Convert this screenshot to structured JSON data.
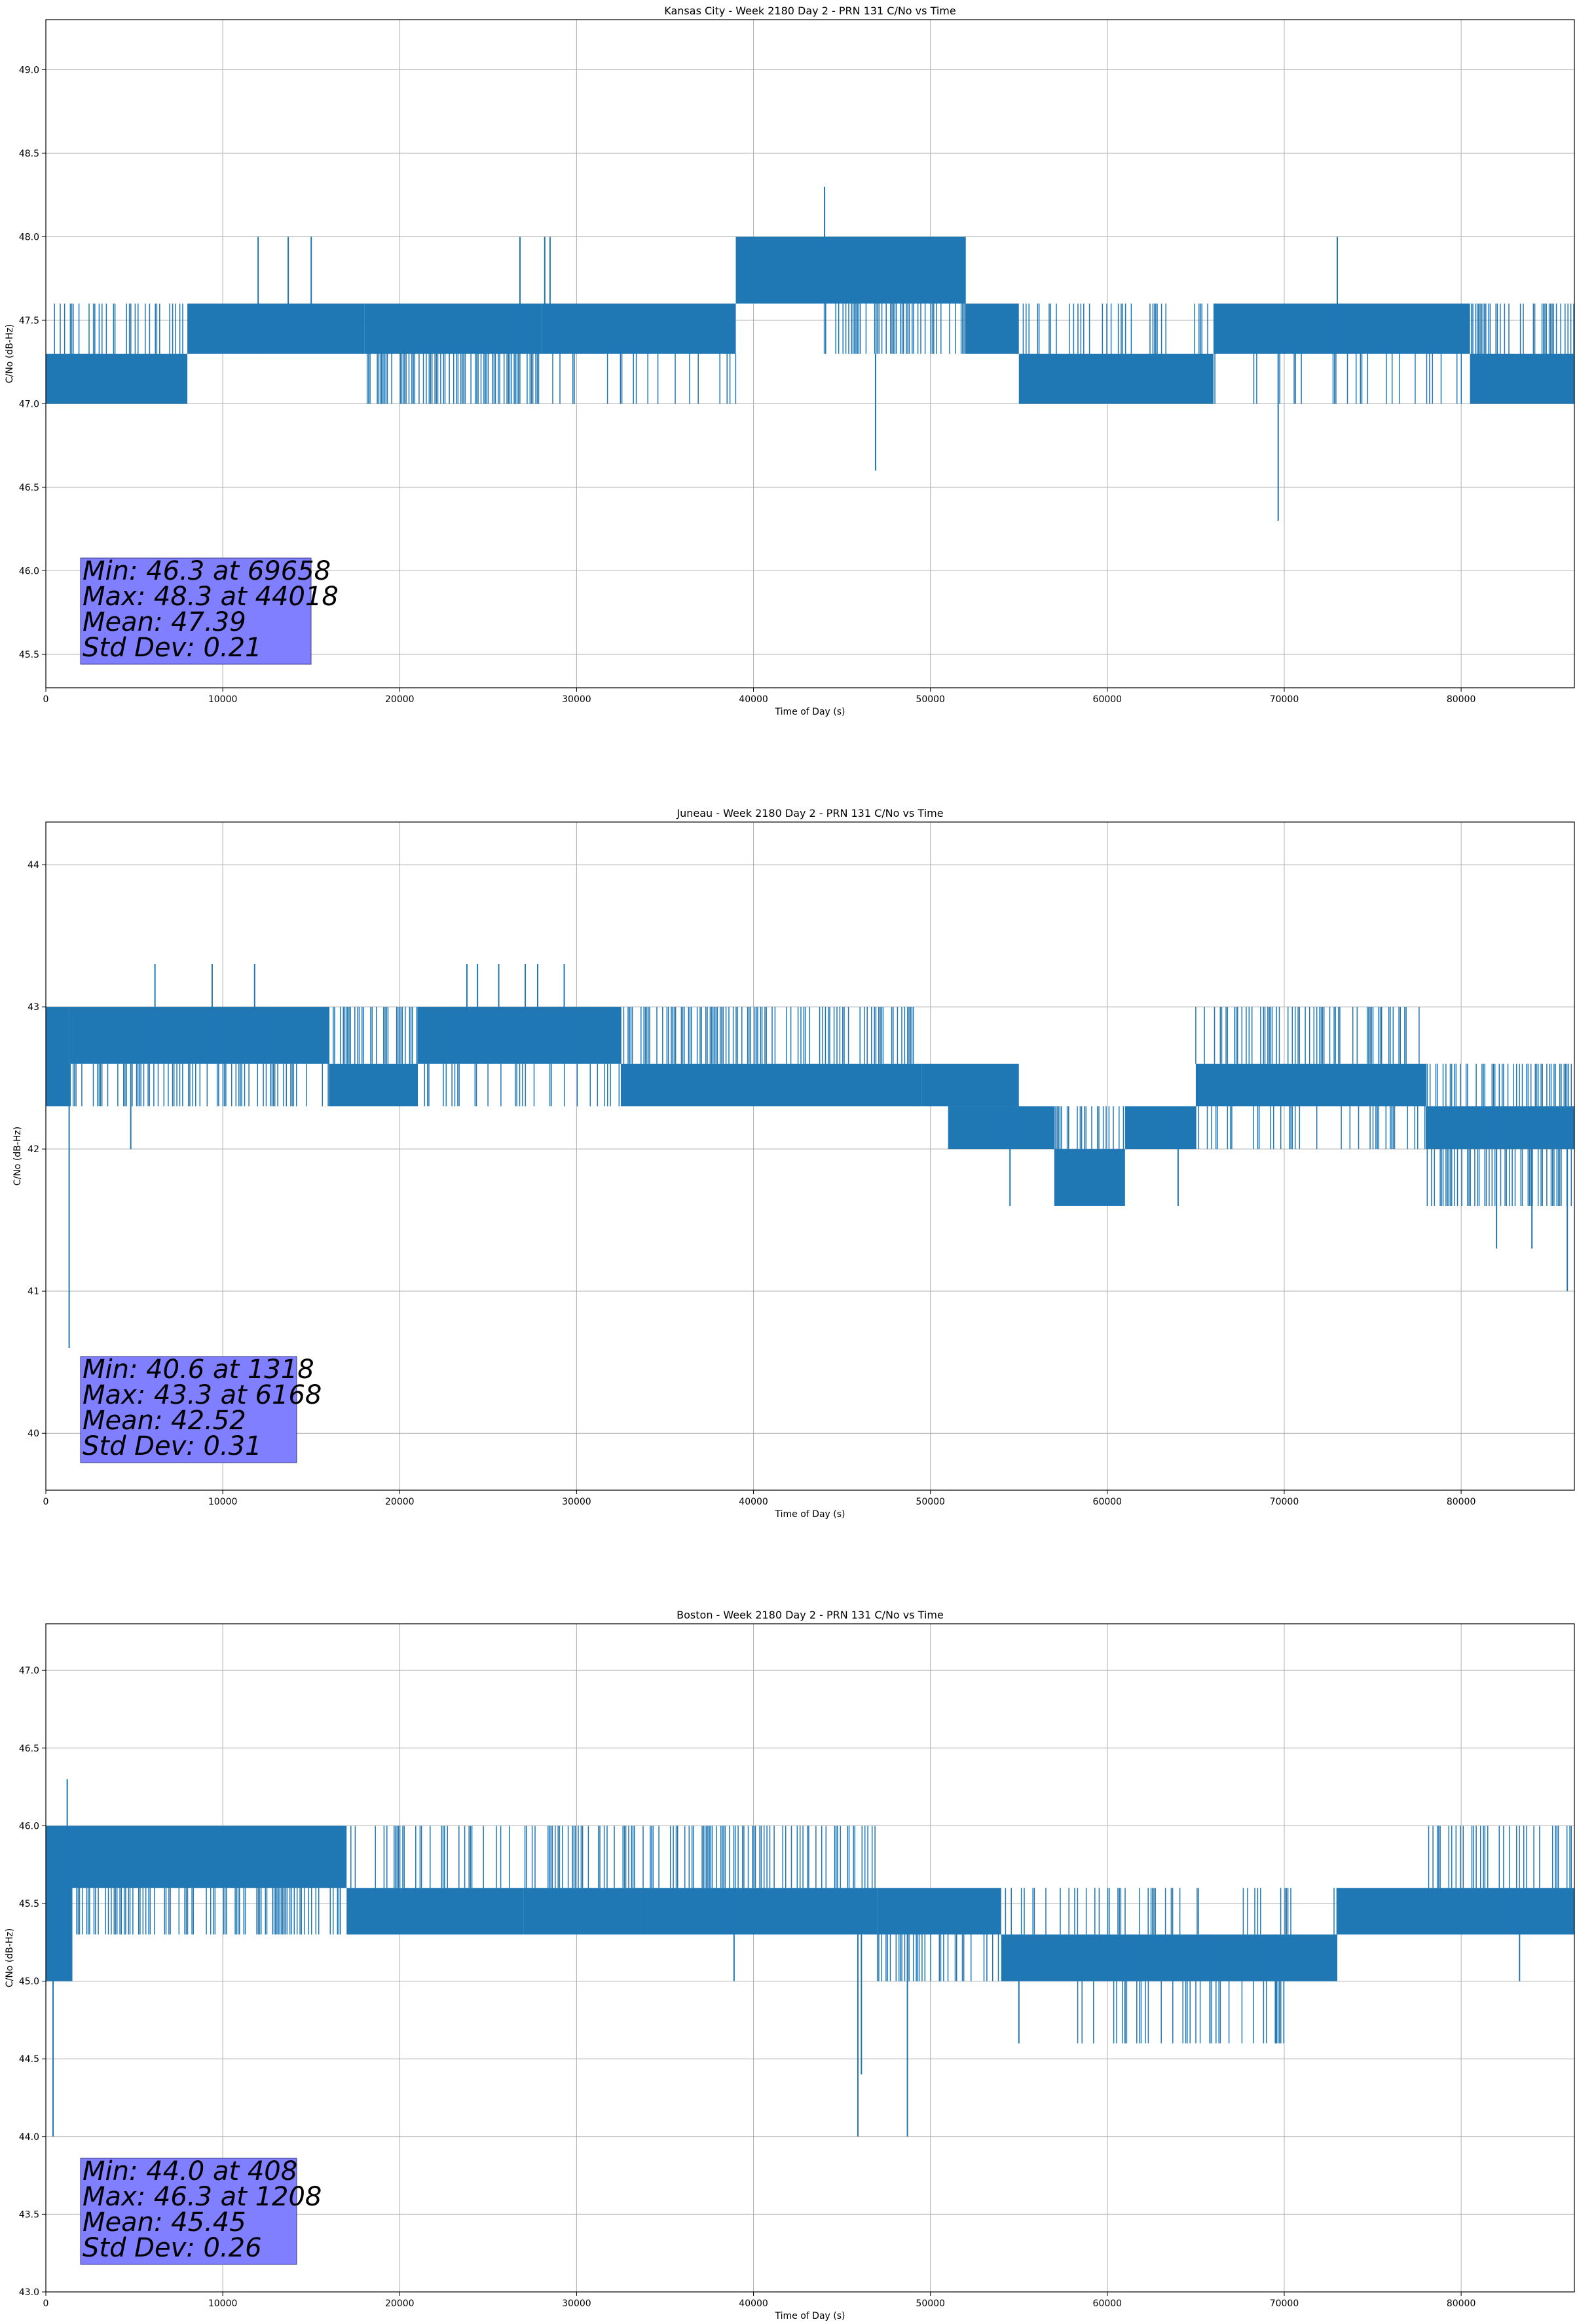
{
  "chart_data": [
    {
      "type": "line",
      "title": "Kansas City - Week 2180 Day 2 - PRN 131 C/No vs Time",
      "xlabel": "Time of Day (s)",
      "ylabel": "C/No (dB-Hz)",
      "xlim": [
        0,
        86400
      ],
      "ylim": [
        45.3,
        49.3
      ],
      "xticks": [
        0,
        10000,
        20000,
        30000,
        40000,
        50000,
        60000,
        70000,
        80000
      ],
      "yticks": [
        45.5,
        46.0,
        46.5,
        47.0,
        47.5,
        48.0,
        48.5,
        49.0
      ],
      "ytick_labels": [
        "45.5",
        "46.0",
        "46.5",
        "47.0",
        "47.5",
        "48.0",
        "48.5",
        "49.0"
      ],
      "grid": true,
      "series_color": "#1f77b4",
      "bands": [
        {
          "x": [
            0,
            8000
          ],
          "lo": 47.0,
          "hi": 47.3
        },
        {
          "x": [
            0,
            8000
          ],
          "lo": 47.3,
          "hi": 47.6,
          "density": 0.35
        },
        {
          "x": [
            8000,
            18000
          ],
          "lo": 47.3,
          "hi": 47.6
        },
        {
          "x": [
            18000,
            28000
          ],
          "lo": 47.0,
          "hi": 47.3,
          "density": 0.6
        },
        {
          "x": [
            18000,
            28000
          ],
          "lo": 47.3,
          "hi": 47.6
        },
        {
          "x": [
            28000,
            39000
          ],
          "lo": 47.3,
          "hi": 47.6
        },
        {
          "x": [
            28000,
            39000
          ],
          "lo": 47.0,
          "hi": 47.3,
          "density": 0.15
        },
        {
          "x": [
            39000,
            52000
          ],
          "lo": 47.6,
          "hi": 48.0
        },
        {
          "x": [
            44000,
            52000
          ],
          "lo": 47.3,
          "hi": 47.6,
          "density": 0.4
        },
        {
          "x": [
            52000,
            55000
          ],
          "lo": 47.3,
          "hi": 47.6
        },
        {
          "x": [
            55000,
            66000
          ],
          "lo": 47.0,
          "hi": 47.3
        },
        {
          "x": [
            55000,
            66000
          ],
          "lo": 47.3,
          "hi": 47.6,
          "density": 0.3
        },
        {
          "x": [
            66000,
            80500
          ],
          "lo": 47.3,
          "hi": 47.6
        },
        {
          "x": [
            66000,
            80500
          ],
          "lo": 47.0,
          "hi": 47.3,
          "density": 0.2
        },
        {
          "x": [
            80500,
            86400
          ],
          "lo": 47.0,
          "hi": 47.3
        },
        {
          "x": [
            80500,
            86400
          ],
          "lo": 47.3,
          "hi": 47.6,
          "density": 0.4
        }
      ],
      "spikes": [
        {
          "x": 12000,
          "lo": 47.3,
          "hi": 48.0
        },
        {
          "x": 13700,
          "lo": 47.3,
          "hi": 48.0
        },
        {
          "x": 15000,
          "lo": 47.3,
          "hi": 48.0
        },
        {
          "x": 26800,
          "lo": 47.3,
          "hi": 48.0
        },
        {
          "x": 28200,
          "lo": 47.3,
          "hi": 48.0
        },
        {
          "x": 28500,
          "lo": 47.3,
          "hi": 48.0
        },
        {
          "x": 44018,
          "lo": 47.6,
          "hi": 48.3
        },
        {
          "x": 46900,
          "lo": 46.6,
          "hi": 47.3
        },
        {
          "x": 69658,
          "lo": 46.3,
          "hi": 47.3
        },
        {
          "x": 73000,
          "lo": 47.3,
          "hi": 48.0
        }
      ],
      "stats": {
        "min": "Min: 46.3 at 69658",
        "max": "Max: 48.3 at 44018",
        "mean": "Mean: 47.39",
        "std": "Std Dev: 0.21"
      }
    },
    {
      "type": "line",
      "title": "Juneau - Week 2180 Day 2 - PRN 131 C/No vs Time",
      "xlabel": "Time of Day (s)",
      "ylabel": "C/No (dB-Hz)",
      "xlim": [
        0,
        86400
      ],
      "ylim": [
        39.6,
        44.3
      ],
      "xticks": [
        0,
        10000,
        20000,
        30000,
        40000,
        50000,
        60000,
        70000,
        80000
      ],
      "yticks": [
        40,
        41,
        42,
        43,
        44
      ],
      "ytick_labels": [
        "40",
        "41",
        "42",
        "43",
        "44"
      ],
      "grid": true,
      "series_color": "#1f77b4",
      "bands": [
        {
          "x": [
            0,
            1300
          ],
          "lo": 42.3,
          "hi": 43.0
        },
        {
          "x": [
            1300,
            16000
          ],
          "lo": 42.6,
          "hi": 43.0
        },
        {
          "x": [
            1300,
            16000
          ],
          "lo": 42.3,
          "hi": 42.6,
          "density": 0.3
        },
        {
          "x": [
            16000,
            21000
          ],
          "lo": 42.3,
          "hi": 42.6
        },
        {
          "x": [
            16000,
            21000
          ],
          "lo": 42.6,
          "hi": 43.0,
          "density": 0.5
        },
        {
          "x": [
            21000,
            32500
          ],
          "lo": 42.6,
          "hi": 43.0
        },
        {
          "x": [
            21000,
            32500
          ],
          "lo": 42.3,
          "hi": 42.6,
          "density": 0.2
        },
        {
          "x": [
            32500,
            49500
          ],
          "lo": 42.3,
          "hi": 42.6
        },
        {
          "x": [
            32500,
            49500
          ],
          "lo": 42.6,
          "hi": 43.0,
          "density": 0.5
        },
        {
          "x": [
            49500,
            55000
          ],
          "lo": 42.3,
          "hi": 42.6
        },
        {
          "x": [
            51000,
            57000
          ],
          "lo": 42.0,
          "hi": 42.3
        },
        {
          "x": [
            57000,
            61000
          ],
          "lo": 41.6,
          "hi": 42.0
        },
        {
          "x": [
            57000,
            61000
          ],
          "lo": 42.0,
          "hi": 42.3,
          "density": 0.4
        },
        {
          "x": [
            61000,
            65000
          ],
          "lo": 42.0,
          "hi": 42.3
        },
        {
          "x": [
            65000,
            78000
          ],
          "lo": 42.3,
          "hi": 42.6
        },
        {
          "x": [
            65000,
            78000
          ],
          "lo": 42.6,
          "hi": 43.0,
          "density": 0.35
        },
        {
          "x": [
            65000,
            78000
          ],
          "lo": 42.0,
          "hi": 42.3,
          "density": 0.2
        },
        {
          "x": [
            78000,
            86400
          ],
          "lo": 42.0,
          "hi": 42.3
        },
        {
          "x": [
            78000,
            86400
          ],
          "lo": 41.6,
          "hi": 42.0,
          "density": 0.45
        },
        {
          "x": [
            78000,
            86400
          ],
          "lo": 42.3,
          "hi": 42.6,
          "density": 0.4
        }
      ],
      "spikes": [
        {
          "x": 1318,
          "lo": 40.6,
          "hi": 42.6
        },
        {
          "x": 4800,
          "lo": 42.0,
          "hi": 42.6
        },
        {
          "x": 6168,
          "lo": 42.6,
          "hi": 43.3
        },
        {
          "x": 9400,
          "lo": 42.6,
          "hi": 43.3
        },
        {
          "x": 11800,
          "lo": 42.6,
          "hi": 43.3
        },
        {
          "x": 23800,
          "lo": 42.6,
          "hi": 43.3
        },
        {
          "x": 24400,
          "lo": 42.6,
          "hi": 43.3
        },
        {
          "x": 25600,
          "lo": 42.6,
          "hi": 43.3
        },
        {
          "x": 27100,
          "lo": 42.6,
          "hi": 43.3
        },
        {
          "x": 27800,
          "lo": 42.6,
          "hi": 43.3
        },
        {
          "x": 29300,
          "lo": 42.6,
          "hi": 43.3
        },
        {
          "x": 54500,
          "lo": 41.6,
          "hi": 42.3
        },
        {
          "x": 64000,
          "lo": 41.6,
          "hi": 42.3
        },
        {
          "x": 82000,
          "lo": 41.3,
          "hi": 42.3
        },
        {
          "x": 84000,
          "lo": 41.3,
          "hi": 42.3
        },
        {
          "x": 86000,
          "lo": 41.0,
          "hi": 42.3
        }
      ],
      "stats": {
        "min": "Min: 40.6 at 1318",
        "max": "Max: 43.3 at 6168",
        "mean": "Mean: 42.52",
        "std": "Std Dev: 0.31"
      }
    },
    {
      "type": "line",
      "title": "Boston - Week 2180 Day 2 - PRN 131 C/No vs Time",
      "xlabel": "Time of Day (s)",
      "ylabel": "C/No (dB-Hz)",
      "xlim": [
        0,
        86400
      ],
      "ylim": [
        43.0,
        47.3
      ],
      "xticks": [
        0,
        10000,
        20000,
        30000,
        40000,
        50000,
        60000,
        70000,
        80000
      ],
      "yticks": [
        43.0,
        43.5,
        44.0,
        44.5,
        45.0,
        45.5,
        46.0,
        46.5,
        47.0
      ],
      "ytick_labels": [
        "43.0",
        "43.5",
        "44.0",
        "44.5",
        "45.0",
        "45.5",
        "46.0",
        "46.5",
        "47.0"
      ],
      "grid": true,
      "series_color": "#1f77b4",
      "bands": [
        {
          "x": [
            0,
            1500
          ],
          "lo": 45.0,
          "hi": 46.0
        },
        {
          "x": [
            1500,
            17000
          ],
          "lo": 45.6,
          "hi": 46.0
        },
        {
          "x": [
            1500,
            17000
          ],
          "lo": 45.3,
          "hi": 45.6,
          "density": 0.45
        },
        {
          "x": [
            17000,
            27000
          ],
          "lo": 45.3,
          "hi": 45.6
        },
        {
          "x": [
            17000,
            27000
          ],
          "lo": 45.6,
          "hi": 46.0,
          "density": 0.3
        },
        {
          "x": [
            27000,
            34000
          ],
          "lo": 45.3,
          "hi": 45.6
        },
        {
          "x": [
            27000,
            34000
          ],
          "lo": 45.6,
          "hi": 46.0,
          "density": 0.35
        },
        {
          "x": [
            34000,
            47000
          ],
          "lo": 45.3,
          "hi": 45.6
        },
        {
          "x": [
            34000,
            47000
          ],
          "lo": 45.6,
          "hi": 46.0,
          "density": 0.3
        },
        {
          "x": [
            47000,
            54000
          ],
          "lo": 45.3,
          "hi": 45.6
        },
        {
          "x": [
            47000,
            54000
          ],
          "lo": 45.0,
          "hi": 45.3,
          "density": 0.4
        },
        {
          "x": [
            54000,
            73000
          ],
          "lo": 45.0,
          "hi": 45.3
        },
        {
          "x": [
            54000,
            73000
          ],
          "lo": 45.3,
          "hi": 45.6,
          "density": 0.2
        },
        {
          "x": [
            58000,
            70000
          ],
          "lo": 44.6,
          "hi": 45.0,
          "density": 0.2
        },
        {
          "x": [
            73000,
            86400
          ],
          "lo": 45.3,
          "hi": 45.6
        },
        {
          "x": [
            78000,
            86400
          ],
          "lo": 45.6,
          "hi": 46.0,
          "density": 0.25
        }
      ],
      "spikes": [
        {
          "x": 408,
          "lo": 44.0,
          "hi": 45.3
        },
        {
          "x": 1208,
          "lo": 45.6,
          "hi": 46.3
        },
        {
          "x": 1400,
          "lo": 45.0,
          "hi": 45.6
        },
        {
          "x": 38900,
          "lo": 45.0,
          "hi": 45.6
        },
        {
          "x": 45900,
          "lo": 44.0,
          "hi": 45.3
        },
        {
          "x": 46100,
          "lo": 44.4,
          "hi": 45.3
        },
        {
          "x": 48700,
          "lo": 44.0,
          "hi": 45.3
        },
        {
          "x": 55000,
          "lo": 44.6,
          "hi": 45.3
        },
        {
          "x": 61000,
          "lo": 44.6,
          "hi": 45.3
        },
        {
          "x": 65800,
          "lo": 44.6,
          "hi": 45.3
        },
        {
          "x": 69500,
          "lo": 44.6,
          "hi": 45.3
        },
        {
          "x": 83300,
          "lo": 45.0,
          "hi": 45.6
        }
      ],
      "stats": {
        "min": "Min: 44.0 at 408",
        "max": "Max: 46.3 at 1208",
        "mean": "Mean: 45.45",
        "std": "Std Dev: 0.26"
      }
    }
  ]
}
